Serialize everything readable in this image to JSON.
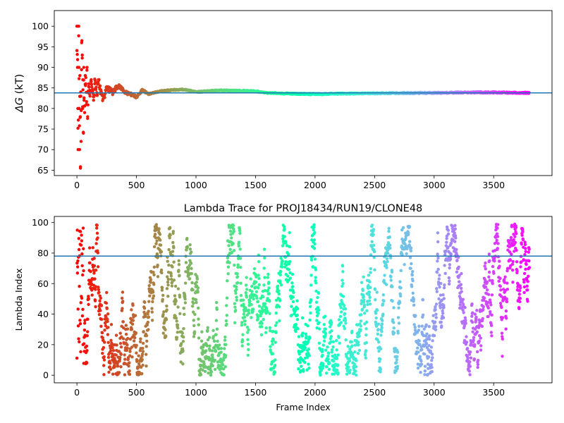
{
  "chart_data": [
    {
      "type": "scatter",
      "title": "",
      "xlabel": "",
      "ylabel": "ΔG (kT)",
      "ylabel_symbol": "ΔG",
      "ylabel_unit": " (kT)",
      "xlim": [
        -190,
        3990
      ],
      "ylim": [
        63.7,
        103.8
      ],
      "xticks": [
        0,
        500,
        1000,
        1500,
        2000,
        2500,
        3000,
        3500
      ],
      "xtick_labels": [
        "0",
        "500",
        "1000",
        "1500",
        "2000",
        "2500",
        "3000",
        "3500"
      ],
      "yticks": [
        65,
        70,
        75,
        80,
        85,
        90,
        95,
        100
      ],
      "ytick_labels": [
        "65",
        "70",
        "75",
        "80",
        "85",
        "90",
        "95",
        "100"
      ],
      "grid": false,
      "colormap": "rainbow (red at start to violet at end)",
      "reference_line": {
        "y": 83.8,
        "color": "#1f77b4"
      },
      "frames": 3800,
      "trace_points": [
        [
          0,
          100
        ],
        [
          5,
          90
        ],
        [
          8,
          80
        ],
        [
          10,
          70
        ],
        [
          15,
          100
        ],
        [
          18,
          90
        ],
        [
          20,
          80
        ],
        [
          22,
          70
        ],
        [
          25,
          88
        ],
        [
          28,
          78
        ],
        [
          30,
          65.5
        ],
        [
          32,
          84
        ],
        [
          35,
          72
        ],
        [
          40,
          96
        ],
        [
          45,
          93
        ],
        [
          48,
          80
        ],
        [
          50,
          87
        ],
        [
          55,
          74
        ],
        [
          58,
          90
        ],
        [
          60,
          82
        ],
        [
          65,
          79
        ],
        [
          70,
          88
        ],
        [
          75,
          86
        ],
        [
          80,
          81
        ],
        [
          85,
          90
        ],
        [
          90,
          78
        ],
        [
          95,
          84
        ],
        [
          100,
          86
        ],
        [
          110,
          83
        ],
        [
          120,
          87
        ],
        [
          130,
          84
        ],
        [
          140,
          82
        ],
        [
          150,
          86
        ],
        [
          160,
          85
        ],
        [
          170,
          83.5
        ],
        [
          180,
          87
        ],
        [
          200,
          84
        ],
        [
          220,
          82
        ],
        [
          250,
          85
        ],
        [
          300,
          84
        ],
        [
          350,
          85.5
        ],
        [
          400,
          84
        ],
        [
          450,
          83.5
        ],
        [
          500,
          82.8
        ],
        [
          550,
          84.5
        ],
        [
          600,
          83.5
        ],
        [
          700,
          84.2
        ],
        [
          800,
          84.5
        ],
        [
          900,
          84.6
        ],
        [
          1000,
          84
        ],
        [
          1200,
          84.4
        ],
        [
          1400,
          84.3
        ],
        [
          1500,
          84.2
        ],
        [
          1600,
          83.8
        ],
        [
          1800,
          83.6
        ],
        [
          2000,
          83.5
        ],
        [
          2200,
          83.6
        ],
        [
          2500,
          83.7
        ],
        [
          3000,
          83.8
        ],
        [
          3300,
          83.9
        ],
        [
          3500,
          83.9
        ],
        [
          3800,
          83.8
        ]
      ]
    },
    {
      "type": "scatter",
      "title": "Lambda Trace for PROJ18434/RUN19/CLONE48",
      "xlabel": "Frame Index",
      "ylabel": "Lambda Index",
      "xlim": [
        -190,
        3990
      ],
      "ylim": [
        -5,
        104
      ],
      "xticks": [
        0,
        500,
        1000,
        1500,
        2000,
        2500,
        3000,
        3500
      ],
      "xtick_labels": [
        "0",
        "500",
        "1000",
        "1500",
        "2000",
        "2500",
        "3000",
        "3500"
      ],
      "yticks": [
        0,
        20,
        40,
        60,
        80,
        100
      ],
      "ytick_labels": [
        "0",
        "20",
        "40",
        "60",
        "80",
        "100"
      ],
      "grid": false,
      "colormap": "rainbow (red at start to violet at end)",
      "reference_line": {
        "y": 78,
        "color": "#1f77b4"
      },
      "frames": 3800,
      "lambda_range": [
        0,
        99
      ]
    }
  ]
}
